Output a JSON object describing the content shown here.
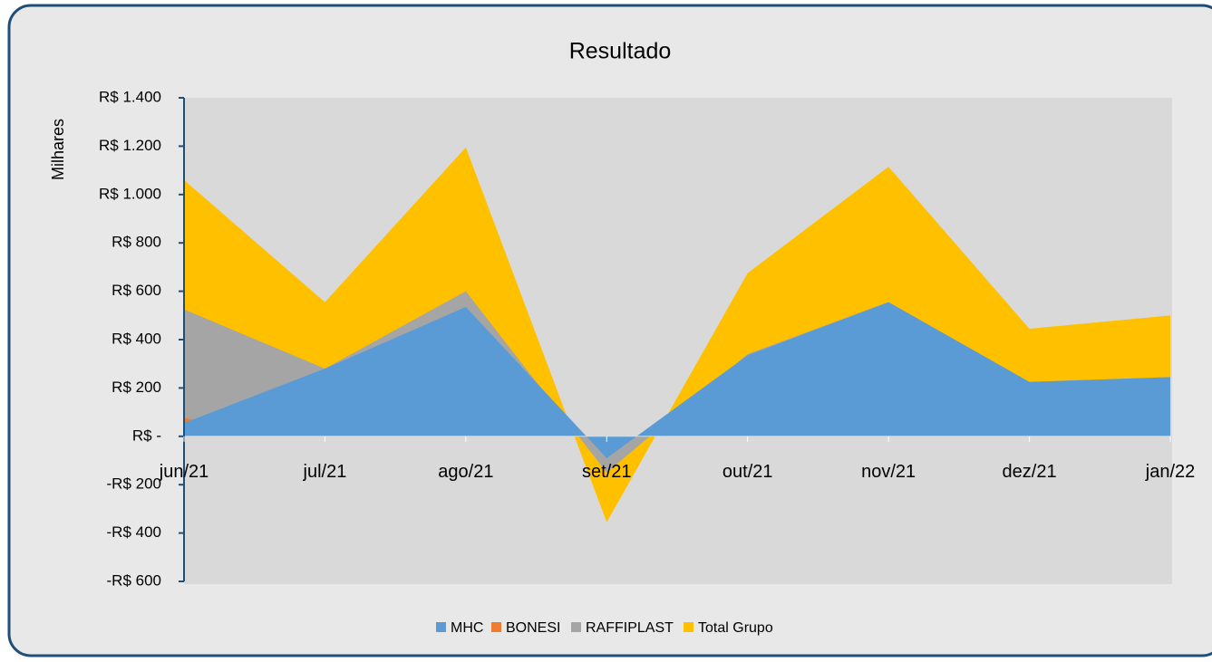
{
  "chart_data": {
    "type": "area",
    "title": "Resultado",
    "y_label": "Milhares",
    "categories": [
      "jun/21",
      "jul/21",
      "ago/21",
      "set/21",
      "out/21",
      "nov/21",
      "dez/21",
      "jan/22"
    ],
    "series": [
      {
        "name": "MHC",
        "color": "#5b9bd5",
        "values": [
          55,
          280,
          535,
          -90,
          335,
          555,
          225,
          245
        ]
      },
      {
        "name": "BONESI",
        "color": "#ed7d31",
        "values": [
          75,
          0,
          0,
          0,
          0,
          0,
          0,
          0
        ]
      },
      {
        "name": "RAFFIPLAST",
        "color": "#a5a5a5",
        "values": [
          525,
          280,
          600,
          -150,
          340,
          555,
          225,
          245
        ]
      },
      {
        "name": "Total Grupo",
        "color": "#ffc000",
        "values": [
          1060,
          555,
          1195,
          -355,
          675,
          1115,
          445,
          500
        ]
      }
    ],
    "ylim": [
      -600,
      1400
    ],
    "yticks": [
      {
        "value": -600,
        "label": "-R$ 600"
      },
      {
        "value": -400,
        "label": "-R$ 400"
      },
      {
        "value": -200,
        "label": "-R$ 200"
      },
      {
        "value": 0,
        "label": "R$ -"
      },
      {
        "value": 200,
        "label": "R$ 200"
      },
      {
        "value": 400,
        "label": "R$ 400"
      },
      {
        "value": 600,
        "label": "R$ 600"
      },
      {
        "value": 800,
        "label": "R$ 800"
      },
      {
        "value": 1000,
        "label": "R$ 1.000"
      },
      {
        "value": 1200,
        "label": "R$ 1.200"
      },
      {
        "value": 1400,
        "label": "R$ 1.400"
      }
    ],
    "grid": false,
    "legend": "bottom"
  }
}
